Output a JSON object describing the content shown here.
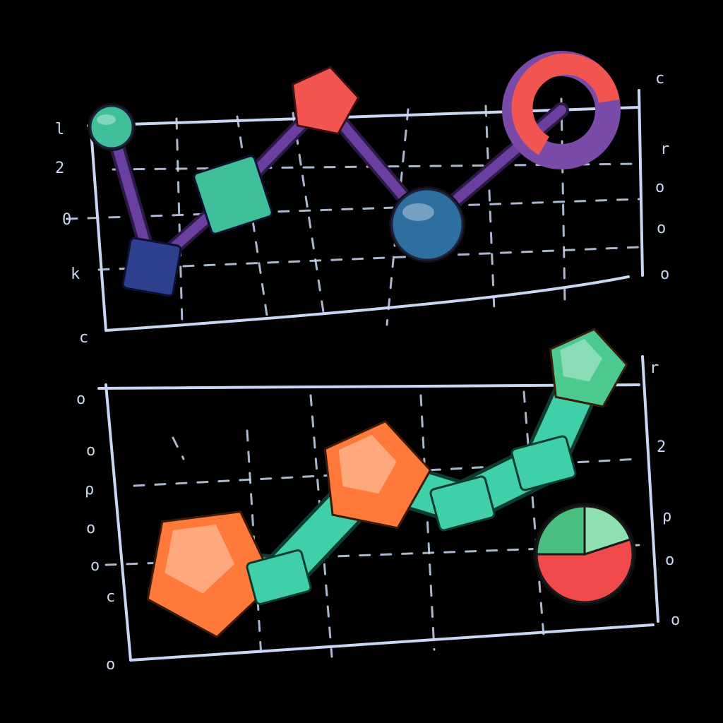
{
  "chart_data": [
    {
      "type": "line",
      "colors": {
        "connector": "#6a3fa0",
        "teal": "#3fbf9a",
        "navy": "#2f3f8f",
        "red": "#f2554f",
        "blue": "#2f6f9f",
        "purple": "#7a4aa8"
      },
      "points": [
        {
          "x": 1,
          "y": 4.0,
          "marker": "circle",
          "color": "#3fbf9a"
        },
        {
          "x": 2,
          "y": 0.6,
          "marker": "square",
          "color": "#2f3f8f"
        },
        {
          "x": 3,
          "y": 2.2,
          "marker": "square",
          "color": "#3fbf9a"
        },
        {
          "x": 4,
          "y": 4.3,
          "marker": "pentagon",
          "color": "#f2554f"
        },
        {
          "x": 5,
          "y": 1.3,
          "marker": "circle",
          "color": "#2f6f9f"
        },
        {
          "x": 6,
          "y": 3.9,
          "marker": "ring",
          "color": "#f2554f"
        }
      ],
      "left_tick_labels": [
        "l",
        "2",
        "0",
        "k",
        "c"
      ],
      "right_tick_labels": [
        "c",
        "r",
        "o",
        "o",
        "o"
      ],
      "grid": true
    },
    {
      "type": "line",
      "colors": {
        "connector": "#3fd0a8",
        "orange": "#ff7a3a",
        "green": "#4bc98f",
        "pie_red": "#f04a4a",
        "pie_green": "#49c07f",
        "pie_light": "#8fe0b0"
      },
      "points": [
        {
          "x": 1,
          "y": 1.6,
          "marker": "pentagon",
          "color": "#ff7a3a"
        },
        {
          "x": 2,
          "y": 1.5,
          "marker": "segment",
          "color": "#3fd0a8"
        },
        {
          "x": 3,
          "y": 3.0,
          "marker": "pentagon",
          "color": "#ff7a3a"
        },
        {
          "x": 4,
          "y": 2.6,
          "marker": "segment",
          "color": "#3fd0a8"
        },
        {
          "x": 5,
          "y": 3.2,
          "marker": "segment",
          "color": "#3fd0a8"
        },
        {
          "x": 6,
          "y": 4.6,
          "marker": "pentagon",
          "color": "#4bc98f"
        }
      ],
      "pie": {
        "slices": [
          {
            "value": 55,
            "color": "#f04a4a"
          },
          {
            "value": 25,
            "color": "#49c07f"
          },
          {
            "value": 20,
            "color": "#8fe0b0"
          }
        ]
      },
      "left_tick_labels": [
        "o",
        "o",
        "ρ",
        "o",
        "o",
        "c",
        "o"
      ],
      "right_tick_labels": [
        "r",
        "2",
        "ρ",
        "o",
        "o"
      ],
      "grid": true
    }
  ]
}
